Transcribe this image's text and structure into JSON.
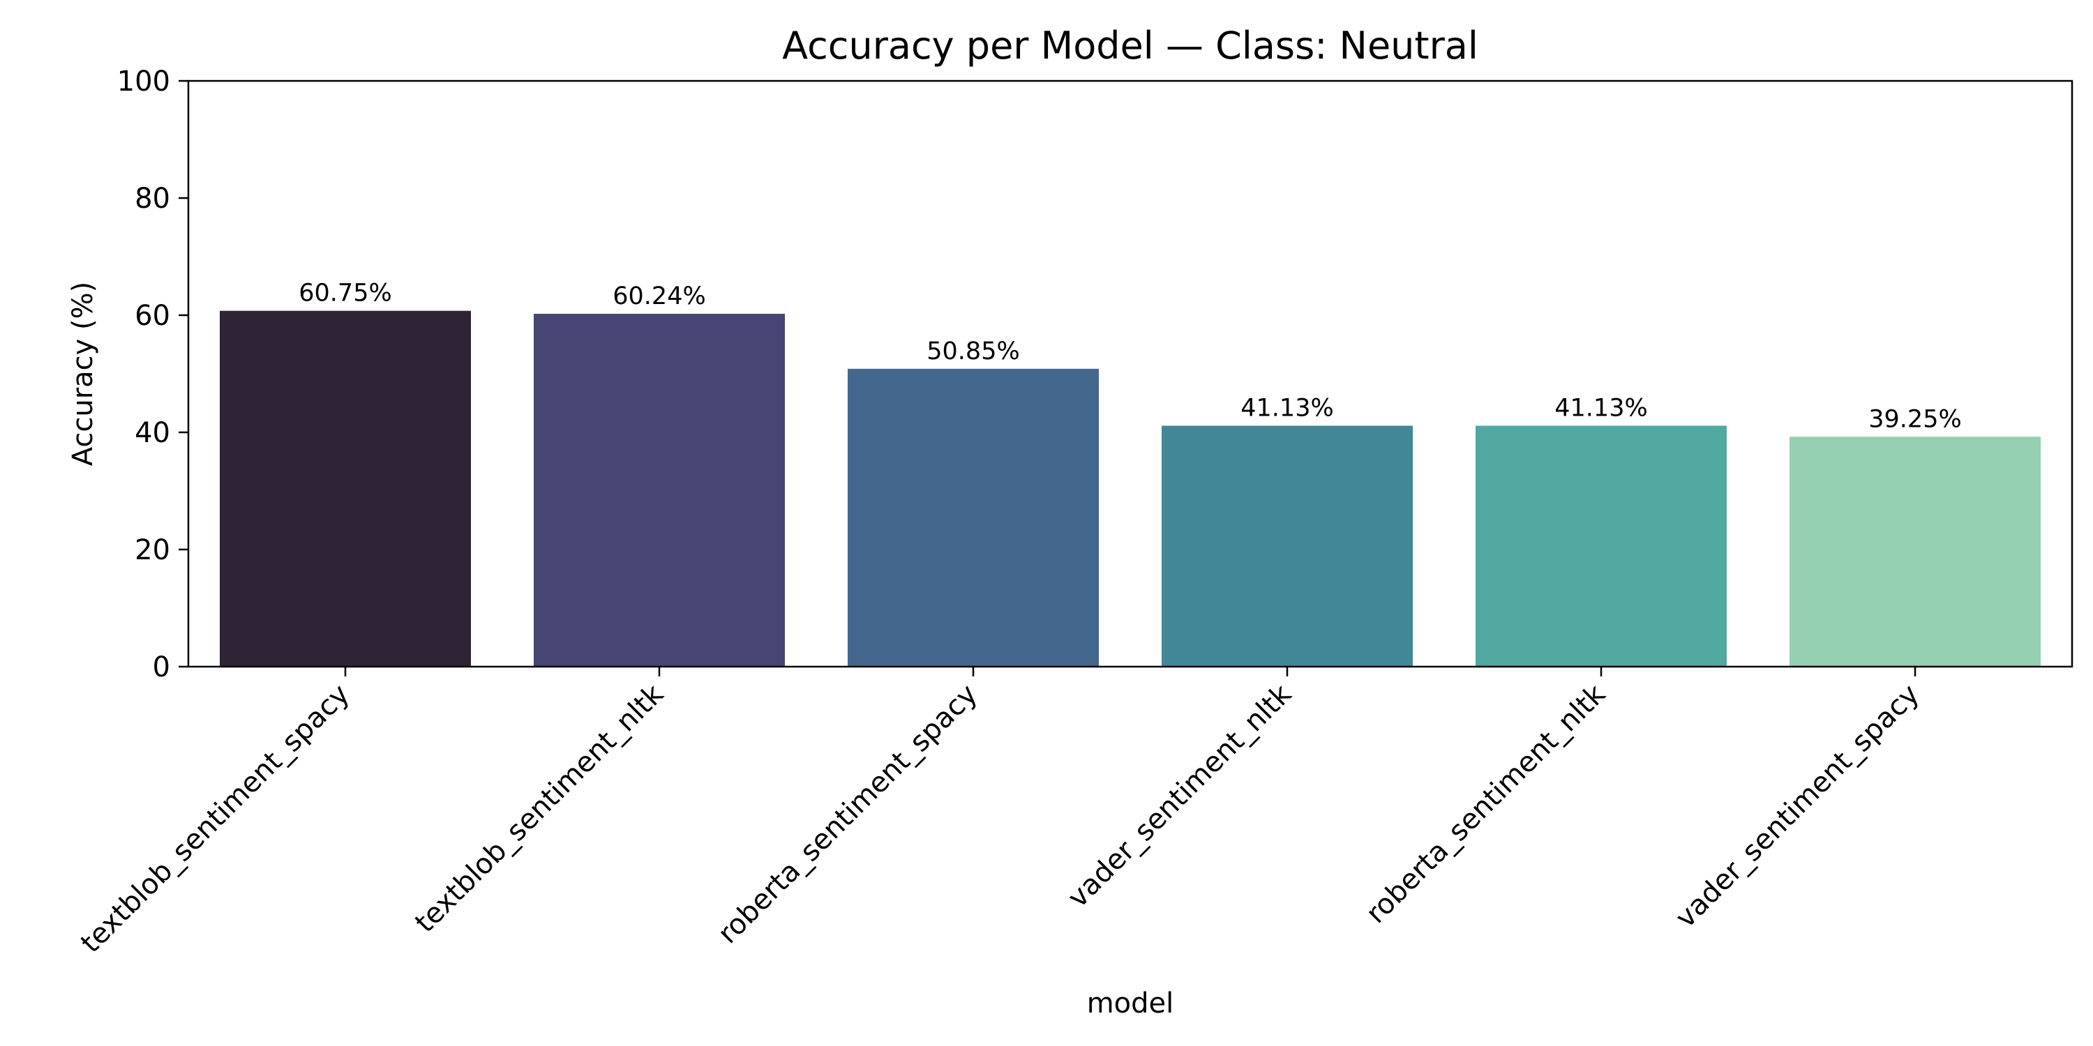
{
  "chart_data": {
    "type": "bar",
    "title": "Accuracy per Model — Class: Neutral",
    "xlabel": "model",
    "ylabel": "Accuracy (%)",
    "categories": [
      "textblob_sentiment_spacy",
      "textblob_sentiment_nltk",
      "roberta_sentiment_spacy",
      "vader_sentiment_nltk",
      "roberta_sentiment_nltk",
      "vader_sentiment_spacy"
    ],
    "values": [
      60.75,
      60.24,
      50.85,
      41.13,
      41.13,
      39.25
    ],
    "data_labels": [
      "60.75%",
      "60.24%",
      "50.85%",
      "41.13%",
      "41.13%",
      "39.25%"
    ],
    "colors": [
      "#2e2436",
      "#474572",
      "#44678e",
      "#428798",
      "#50a8a0",
      "#94d0b1"
    ],
    "yticks": [
      0,
      20,
      40,
      60,
      80,
      100
    ],
    "ylim": [
      0,
      100
    ],
    "grid": false,
    "legend": "none"
  }
}
